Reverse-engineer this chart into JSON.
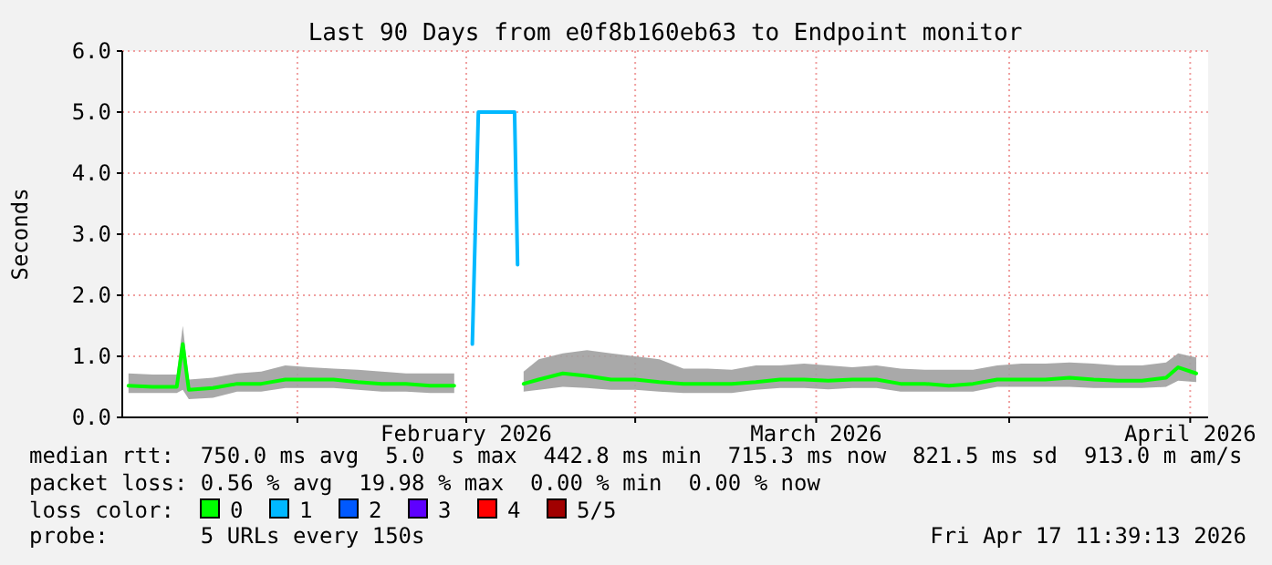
{
  "chart_data": {
    "type": "line",
    "title": "Last 90 Days from e0f8b160eb63 to Endpoint monitor",
    "ylabel": "Seconds",
    "x": [
      "2026-01-18",
      "2026-01-20",
      "2026-01-22",
      "2026-01-22T12:00",
      "2026-01-23",
      "2026-01-25",
      "2026-01-27",
      "2026-01-29",
      "2026-01-31",
      "2026-02-02",
      "2026-02-04",
      "2026-02-06",
      "2026-02-08",
      "2026-02-10",
      "2026-02-12",
      "2026-02-14",
      "2026-02-15T12:00",
      "2026-02-16",
      "2026-02-19",
      "2026-02-19T06:00",
      "2026-02-19T18:00",
      "2026-02-21",
      "2026-02-23",
      "2026-02-25",
      "2026-02-27",
      "2026-03-01",
      "2026-03-03",
      "2026-03-05",
      "2026-03-07",
      "2026-03-09",
      "2026-03-11",
      "2026-03-13",
      "2026-03-15",
      "2026-03-17",
      "2026-03-19",
      "2026-03-21",
      "2026-03-23",
      "2026-03-25",
      "2026-03-27",
      "2026-03-29",
      "2026-03-31",
      "2026-04-02",
      "2026-04-04",
      "2026-04-06",
      "2026-04-08",
      "2026-04-10",
      "2026-04-12",
      "2026-04-14",
      "2026-04-15",
      "2026-04-16T12:00"
    ],
    "series": [
      {
        "name": "0",
        "color": "#00ff00",
        "values": [
          0.52,
          0.5,
          0.5,
          1.2,
          0.45,
          0.48,
          0.55,
          0.55,
          0.62,
          0.62,
          0.62,
          0.58,
          0.55,
          0.55,
          0.52,
          0.52,
          null,
          null,
          null,
          null,
          0.55,
          0.62,
          0.72,
          0.68,
          0.62,
          0.62,
          0.58,
          0.55,
          0.55,
          0.55,
          0.58,
          0.62,
          0.62,
          0.6,
          0.62,
          0.62,
          0.55,
          0.55,
          0.52,
          0.55,
          0.62,
          0.62,
          0.62,
          0.65,
          0.62,
          0.6,
          0.6,
          0.65,
          0.82,
          0.72
        ],
        "lower": [
          0.4,
          0.4,
          0.4,
          0.45,
          0.3,
          0.32,
          0.42,
          0.42,
          0.48,
          0.48,
          0.48,
          0.45,
          0.42,
          0.42,
          0.4,
          0.4,
          null,
          null,
          null,
          null,
          0.42,
          0.45,
          0.5,
          0.48,
          0.45,
          0.45,
          0.42,
          0.4,
          0.4,
          0.4,
          0.45,
          0.48,
          0.48,
          0.46,
          0.48,
          0.48,
          0.42,
          0.42,
          0.42,
          0.42,
          0.5,
          0.5,
          0.5,
          0.5,
          0.48,
          0.48,
          0.48,
          0.5,
          0.6,
          0.58
        ],
        "upper": [
          0.72,
          0.7,
          0.7,
          1.5,
          0.62,
          0.65,
          0.72,
          0.75,
          0.85,
          0.82,
          0.8,
          0.78,
          0.75,
          0.72,
          0.72,
          0.72,
          null,
          null,
          null,
          null,
          0.75,
          0.95,
          1.05,
          1.1,
          1.05,
          1.0,
          0.95,
          0.8,
          0.8,
          0.78,
          0.85,
          0.85,
          0.88,
          0.85,
          0.82,
          0.85,
          0.8,
          0.78,
          0.78,
          0.78,
          0.85,
          0.88,
          0.88,
          0.9,
          0.88,
          0.85,
          0.85,
          0.9,
          1.05,
          0.98
        ]
      },
      {
        "name": "1",
        "color": "#00b8ff",
        "values": [
          null,
          null,
          null,
          null,
          null,
          null,
          null,
          null,
          null,
          null,
          null,
          null,
          null,
          null,
          null,
          null,
          1.2,
          5.0,
          5.0,
          2.5,
          null,
          null,
          null,
          null,
          null,
          null,
          null,
          null,
          null,
          null,
          null,
          null,
          null,
          null,
          null,
          null,
          null,
          null,
          null,
          null,
          null,
          null,
          null,
          null,
          null,
          null,
          null,
          null,
          null,
          null
        ]
      },
      {
        "name": "2",
        "color": "#0059ff",
        "values": [
          null,
          null,
          null,
          null,
          null,
          null,
          null,
          null,
          null,
          null,
          null,
          null,
          null,
          null,
          null,
          null,
          null,
          null,
          null,
          null,
          null,
          null,
          null,
          null,
          null,
          null,
          null,
          null,
          null,
          null,
          null,
          null,
          null,
          null,
          null,
          null,
          null,
          null,
          null,
          null,
          null,
          null,
          null,
          null,
          null,
          null,
          null,
          null,
          null,
          null
        ]
      },
      {
        "name": "3",
        "color": "#5e00ff",
        "values": [
          null,
          null,
          null,
          null,
          null,
          null,
          null,
          null,
          null,
          null,
          null,
          null,
          null,
          null,
          null,
          null,
          null,
          null,
          null,
          null,
          null,
          null,
          null,
          null,
          null,
          null,
          null,
          null,
          null,
          null,
          null,
          null,
          null,
          null,
          null,
          null,
          null,
          null,
          null,
          null,
          null,
          null,
          null,
          null,
          null,
          null,
          null,
          null,
          null,
          null
        ]
      },
      {
        "name": "4",
        "color": "#ff0000",
        "values": [
          null,
          null,
          null,
          null,
          null,
          null,
          null,
          null,
          null,
          null,
          null,
          null,
          null,
          null,
          null,
          null,
          null,
          null,
          null,
          null,
          null,
          null,
          null,
          null,
          null,
          null,
          null,
          null,
          null,
          null,
          null,
          null,
          null,
          null,
          null,
          null,
          null,
          null,
          null,
          null,
          null,
          null,
          null,
          null,
          null,
          null,
          null,
          null,
          null,
          null
        ]
      },
      {
        "name": "5/5",
        "color": "#a10000",
        "values": [
          null,
          null,
          null,
          null,
          null,
          null,
          null,
          null,
          null,
          null,
          null,
          null,
          null,
          null,
          null,
          null,
          null,
          null,
          null,
          null,
          null,
          null,
          null,
          null,
          null,
          null,
          null,
          null,
          null,
          null,
          null,
          null,
          null,
          null,
          null,
          null,
          null,
          null,
          null,
          null,
          null,
          null,
          null,
          null,
          null,
          null,
          null,
          null,
          null,
          null
        ]
      }
    ],
    "xlim": [
      "2026-01-17T11:39",
      "2026-04-17T11:39"
    ],
    "xticks": [
      {
        "value": "2026-02-01",
        "label": null
      },
      {
        "value": "2026-02-15",
        "label": "February 2026"
      },
      {
        "value": "2026-03-01",
        "label": null
      },
      {
        "value": "2026-03-16",
        "label": "March 2026"
      },
      {
        "value": "2026-04-01",
        "label": null
      },
      {
        "value": "2026-04-16",
        "label": "April 2026"
      }
    ],
    "ylim": [
      0,
      6
    ],
    "yticks": [
      {
        "value": 0,
        "label": "0.0"
      },
      {
        "value": 1,
        "label": "1.0"
      },
      {
        "value": 2,
        "label": "2.0"
      },
      {
        "value": 3,
        "label": "3.0"
      },
      {
        "value": 4,
        "label": "4.0"
      },
      {
        "value": 5,
        "label": "5.0"
      },
      {
        "value": 6,
        "label": "6.0"
      }
    ],
    "grid": true,
    "legend": "bottom",
    "legend_title": "loss color:",
    "line_style": "solid",
    "annotations": [
      "median rtt:  750.0 ms avg  5.0  s max  442.8 ms min  715.3 ms now  821.5 ms sd  913.0 m am/s",
      "packet loss: 0.56 % avg  19.98 % max  0.00 % min  0.00 % now",
      "probe:       5 URLs every 150s",
      "Fri Apr 17 11:39:13 2026"
    ]
  }
}
